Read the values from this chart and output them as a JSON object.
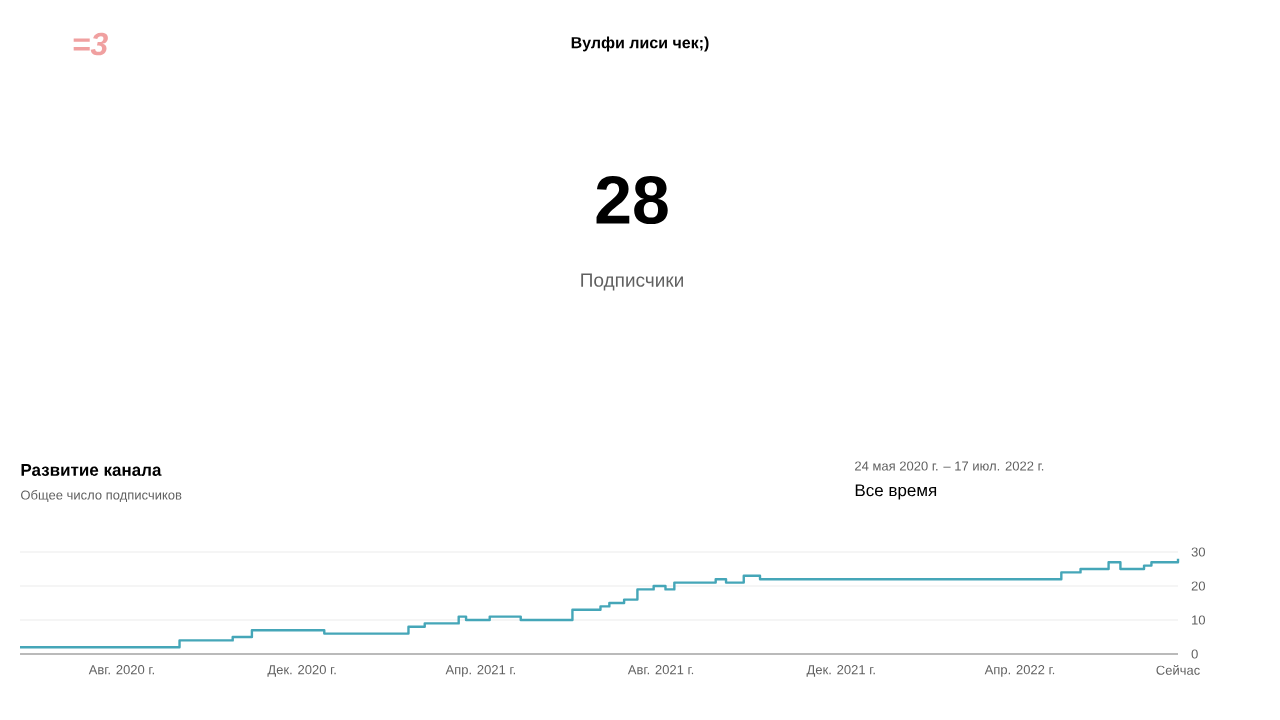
{
  "chart_data": {
    "type": "step",
    "title": "Развитие канала",
    "subtitle": "Общее число подписчиков",
    "annotations": [
      "=3",
      "Вулфи лиси чек;)",
      "28",
      "Подписчики",
      "24 мая 2020 г. – 17 июл. 2022 г.",
      "Все время"
    ],
    "x": [
      "2020-05-24",
      "2020-09-09",
      "2020-10-15",
      "2020-10-28",
      "2020-12-16",
      "2021-02-11",
      "2021-02-22",
      "2021-03-17",
      "2021-03-22",
      "2021-04-07",
      "2021-04-28",
      "2021-06-02",
      "2021-06-21",
      "2021-06-27",
      "2021-07-07",
      "2021-07-16",
      "2021-07-27",
      "2021-08-04",
      "2021-08-10",
      "2021-09-07",
      "2021-09-14",
      "2021-09-26",
      "2021-10-07",
      "2022-04-29",
      "2022-05-12",
      "2022-05-31",
      "2022-06-08",
      "2022-06-24",
      "2022-06-29",
      "2022-07-17"
    ],
    "values": [
      2,
      4,
      5,
      7,
      6,
      8,
      9,
      11,
      10,
      11,
      10,
      13,
      14,
      15,
      16,
      19,
      20,
      19,
      21,
      22,
      21,
      23,
      22,
      24,
      25,
      27,
      25,
      26,
      27,
      28
    ],
    "color": "#45a6b8",
    "xlim": [
      "2020-05-24",
      "2022-07-17"
    ],
    "xticks": [
      {
        "value": "2020-08-01",
        "label": "Авг. 2020 г."
      },
      {
        "value": "2020-12-01",
        "label": "Дек. 2020 г."
      },
      {
        "value": "2021-04-01",
        "label": "Апр. 2021 г."
      },
      {
        "value": "2021-08-01",
        "label": "Авг. 2021 г."
      },
      {
        "value": "2021-12-01",
        "label": "Дек. 2021 г."
      },
      {
        "value": "2022-04-01",
        "label": "Апр. 2022 г."
      },
      {
        "value": "2022-07-17",
        "label": "Сейчас"
      }
    ],
    "ylim": [
      0,
      30
    ],
    "yticks": [
      0,
      10,
      20,
      30
    ],
    "grid": "y"
  }
}
